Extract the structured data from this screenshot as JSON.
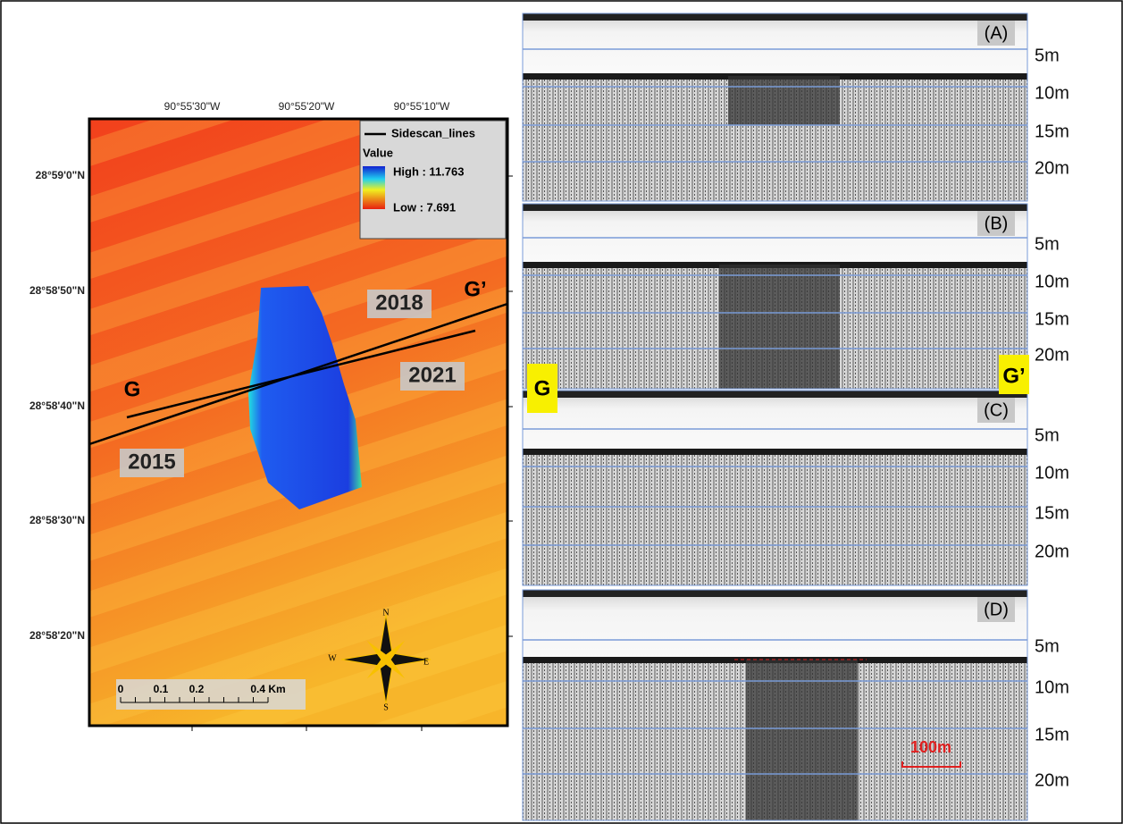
{
  "map": {
    "lon_labels": [
      "90°55'30\"W",
      "90°55'20\"W",
      "90°55'10\"W"
    ],
    "lat_labels": [
      "28°59'0\"N",
      "28°58'50\"N",
      "28°58'40\"N",
      "28°58'30\"N",
      "28°58'20\"N"
    ],
    "legend": {
      "line": "Sidescan_lines",
      "title": "Value",
      "high": "High : 11.763",
      "low": "Low : 7.691"
    },
    "years": [
      "2018",
      "2021",
      "2015"
    ],
    "endpoints": [
      "G",
      "G’"
    ],
    "scale": [
      "0",
      "0.1",
      "0.2",
      "0.4 Km"
    ],
    "compass": [
      "N",
      "S",
      "E",
      "W"
    ]
  },
  "profiles": {
    "panels": [
      {
        "label": "(A)",
        "depths": [
          "5m",
          "10m",
          "15m",
          "20m"
        ]
      },
      {
        "label": "(B)",
        "depths": [
          "5m",
          "10m",
          "15m",
          "20m"
        ]
      },
      {
        "label": "(C)",
        "depths": [
          "5m",
          "10m",
          "15m",
          "20m"
        ]
      },
      {
        "label": "(D)",
        "depths": [
          "5m",
          "10m",
          "15m",
          "20m"
        ]
      }
    ],
    "endpoints": [
      "G",
      "G’"
    ],
    "scale": "100m"
  }
}
